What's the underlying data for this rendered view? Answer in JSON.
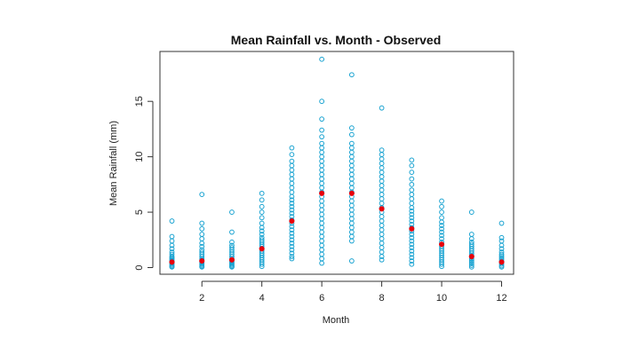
{
  "chart_data": {
    "type": "scatter",
    "title": "Mean Rainfall vs. Month - Observed",
    "xlabel": "Month",
    "ylabel": "Mean Rainfall (mm)",
    "xlim": [
      0.6,
      12.4
    ],
    "ylim": [
      -0.6,
      19.5
    ],
    "x_ticks": [
      2,
      4,
      6,
      8,
      10,
      12
    ],
    "y_ticks": [
      0,
      5,
      10,
      15
    ],
    "grid": false,
    "legend": "none",
    "colors": {
      "observed": "#1aa3d1",
      "mean": "#e8000b"
    },
    "series": [
      {
        "values": [
          {
            "month": 1,
            "points": [
              0.05,
              0.1,
              0.2,
              0.3,
              0.4,
              0.5,
              0.6,
              0.7,
              0.8,
              0.9,
              1.0,
              1.2,
              1.4,
              1.7,
              2.0,
              2.4,
              2.8,
              4.2
            ]
          },
          {
            "month": 2,
            "points": [
              0.05,
              0.1,
              0.2,
              0.3,
              0.4,
              0.5,
              0.7,
              0.8,
              1.0,
              1.2,
              1.4,
              1.6,
              1.9,
              2.2,
              2.6,
              3.0,
              3.5,
              4.0,
              6.6
            ]
          },
          {
            "month": 3,
            "points": [
              0.05,
              0.1,
              0.2,
              0.3,
              0.4,
              0.5,
              0.6,
              0.8,
              1.0,
              1.2,
              1.4,
              1.6,
              1.8,
              2.0,
              2.3,
              3.2,
              5.0
            ]
          },
          {
            "month": 4,
            "points": [
              0.1,
              0.3,
              0.5,
              0.7,
              0.9,
              1.1,
              1.3,
              1.5,
              1.7,
              1.9,
              2.1,
              2.3,
              2.5,
              2.7,
              3.0,
              3.3,
              3.6,
              4.0,
              4.5,
              5.0,
              5.5,
              6.1,
              6.7
            ]
          },
          {
            "month": 5,
            "points": [
              0.8,
              1.0,
              1.3,
              1.6,
              1.9,
              2.2,
              2.5,
              2.8,
              3.1,
              3.4,
              3.7,
              4.0,
              4.3,
              4.6,
              4.9,
              5.2,
              5.5,
              5.8,
              6.1,
              6.4,
              6.8,
              7.2,
              7.6,
              8.0,
              8.4,
              8.8,
              9.2,
              9.6,
              10.2,
              10.8
            ]
          },
          {
            "month": 6,
            "points": [
              0.4,
              0.8,
              1.2,
              1.6,
              2.0,
              2.4,
              2.8,
              3.2,
              3.6,
              4.0,
              4.4,
              4.8,
              5.2,
              5.6,
              6.0,
              6.4,
              6.8,
              7.2,
              7.6,
              8.0,
              8.4,
              8.8,
              9.2,
              9.6,
              10.0,
              10.4,
              10.8,
              11.2,
              11.8,
              12.4,
              13.4,
              15.0,
              18.8
            ]
          },
          {
            "month": 7,
            "points": [
              0.6,
              2.4,
              2.8,
              3.2,
              3.6,
              4.0,
              4.4,
              4.8,
              5.2,
              5.6,
              6.0,
              6.4,
              6.8,
              7.2,
              7.6,
              8.0,
              8.4,
              8.8,
              9.2,
              9.6,
              10.0,
              10.4,
              10.8,
              11.2,
              12.0,
              12.6,
              17.4
            ]
          },
          {
            "month": 8,
            "points": [
              0.7,
              1.0,
              1.4,
              1.8,
              2.2,
              2.6,
              3.0,
              3.4,
              3.8,
              4.2,
              4.6,
              5.0,
              5.4,
              5.8,
              6.2,
              6.6,
              7.0,
              7.4,
              7.8,
              8.2,
              8.6,
              9.0,
              9.4,
              9.8,
              10.2,
              10.6,
              14.4
            ]
          },
          {
            "month": 9,
            "points": [
              0.3,
              0.6,
              0.9,
              1.2,
              1.5,
              1.8,
              2.1,
              2.4,
              2.7,
              3.0,
              3.3,
              3.6,
              3.9,
              4.2,
              4.5,
              4.8,
              5.1,
              5.4,
              5.8,
              6.2,
              6.6,
              7.0,
              7.5,
              8.0,
              8.6,
              9.2,
              9.7
            ]
          },
          {
            "month": 10,
            "points": [
              0.1,
              0.3,
              0.5,
              0.7,
              0.9,
              1.1,
              1.3,
              1.5,
              1.7,
              1.9,
              2.1,
              2.3,
              2.6,
              2.9,
              3.2,
              3.5,
              3.8,
              4.1,
              4.5,
              5.0,
              5.5,
              6.0
            ]
          },
          {
            "month": 11,
            "points": [
              0.05,
              0.2,
              0.35,
              0.5,
              0.65,
              0.8,
              0.95,
              1.1,
              1.3,
              1.5,
              1.7,
              1.9,
              2.1,
              2.3,
              2.6,
              3.0,
              5.0
            ]
          },
          {
            "month": 12,
            "points": [
              0.05,
              0.15,
              0.3,
              0.45,
              0.6,
              0.75,
              0.9,
              1.05,
              1.2,
              1.4,
              1.7,
              2.0,
              2.4,
              2.7,
              4.0
            ]
          }
        ]
      },
      {
        "values": [
          {
            "month": 1,
            "value": 0.5
          },
          {
            "month": 2,
            "value": 0.6
          },
          {
            "month": 3,
            "value": 0.7
          },
          {
            "month": 4,
            "value": 1.7
          },
          {
            "month": 5,
            "value": 4.2
          },
          {
            "month": 6,
            "value": 6.7
          },
          {
            "month": 7,
            "value": 6.7
          },
          {
            "month": 8,
            "value": 5.3
          },
          {
            "month": 9,
            "value": 3.5
          },
          {
            "month": 10,
            "value": 2.1
          },
          {
            "month": 11,
            "value": 1.0
          },
          {
            "month": 12,
            "value": 0.5
          }
        ]
      }
    ]
  }
}
